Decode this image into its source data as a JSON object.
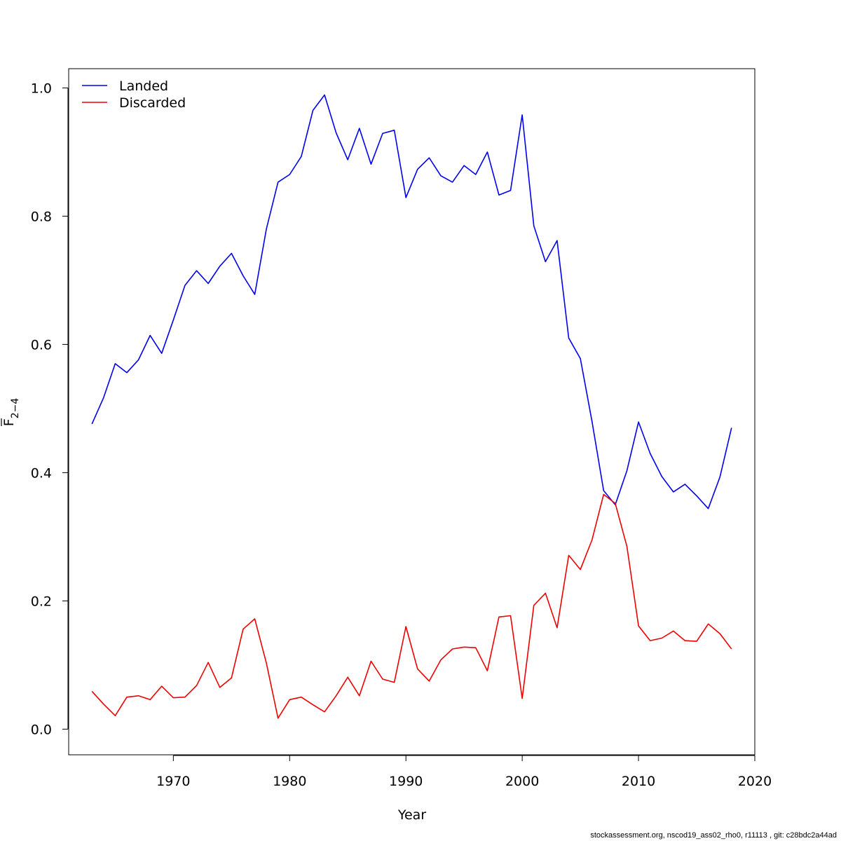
{
  "footer": "stockassessment.org, nscod19_ass02_rho0, r11113 , git: c28bdc2a44ad",
  "chart_data": {
    "type": "line",
    "title": "",
    "xlabel": "Year",
    "ylabel_main": "F",
    "ylabel_sub": "2−4",
    "xlim": [
      1961,
      2020
    ],
    "ylim": [
      -0.04,
      1.03
    ],
    "x_ticks": [
      1970,
      1980,
      1990,
      2000,
      2010,
      2020
    ],
    "y_ticks": [
      0.0,
      0.2,
      0.4,
      0.6,
      0.8,
      1.0
    ],
    "y_tick_labels": [
      "0.0",
      "0.2",
      "0.4",
      "0.6",
      "0.8",
      "1.0"
    ],
    "grid": false,
    "legend_position": "top-left",
    "x": [
      1963,
      1964,
      1965,
      1966,
      1967,
      1968,
      1969,
      1970,
      1971,
      1972,
      1973,
      1974,
      1975,
      1976,
      1977,
      1978,
      1979,
      1980,
      1981,
      1982,
      1983,
      1984,
      1985,
      1986,
      1987,
      1988,
      1989,
      1990,
      1991,
      1992,
      1993,
      1994,
      1995,
      1996,
      1997,
      1998,
      1999,
      2000,
      2001,
      2002,
      2003,
      2004,
      2005,
      2006,
      2007,
      2008,
      2009,
      2010,
      2011,
      2012,
      2013,
      2014,
      2015,
      2016,
      2017,
      2018
    ],
    "series": [
      {
        "name": "Landed",
        "color": "#0000ee",
        "values": [
          0.476,
          0.517,
          0.57,
          0.556,
          0.576,
          0.614,
          0.586,
          0.638,
          0.692,
          0.715,
          0.695,
          0.722,
          0.742,
          0.707,
          0.678,
          0.78,
          0.853,
          0.865,
          0.893,
          0.965,
          0.989,
          0.93,
          0.888,
          0.937,
          0.881,
          0.929,
          0.934,
          0.829,
          0.873,
          0.891,
          0.863,
          0.853,
          0.879,
          0.865,
          0.9,
          0.833,
          0.84,
          0.958,
          0.785,
          0.729,
          0.762,
          0.61,
          0.578,
          0.48,
          0.372,
          0.35,
          0.403,
          0.479,
          0.43,
          0.394,
          0.37,
          0.382,
          0.364,
          0.344,
          0.393,
          0.47
        ]
      },
      {
        "name": "Discarded",
        "color": "#ee0000",
        "values": [
          0.059,
          0.039,
          0.021,
          0.05,
          0.052,
          0.046,
          0.067,
          0.049,
          0.05,
          0.068,
          0.104,
          0.065,
          0.08,
          0.156,
          0.172,
          0.103,
          0.017,
          0.046,
          0.05,
          0.038,
          0.027,
          0.052,
          0.081,
          0.052,
          0.106,
          0.078,
          0.073,
          0.16,
          0.094,
          0.075,
          0.108,
          0.125,
          0.128,
          0.127,
          0.091,
          0.175,
          0.177,
          0.048,
          0.193,
          0.212,
          0.158,
          0.271,
          0.249,
          0.295,
          0.366,
          0.352,
          0.285,
          0.161,
          0.138,
          0.142,
          0.153,
          0.138,
          0.137,
          0.164,
          0.149,
          0.125
        ]
      }
    ]
  }
}
